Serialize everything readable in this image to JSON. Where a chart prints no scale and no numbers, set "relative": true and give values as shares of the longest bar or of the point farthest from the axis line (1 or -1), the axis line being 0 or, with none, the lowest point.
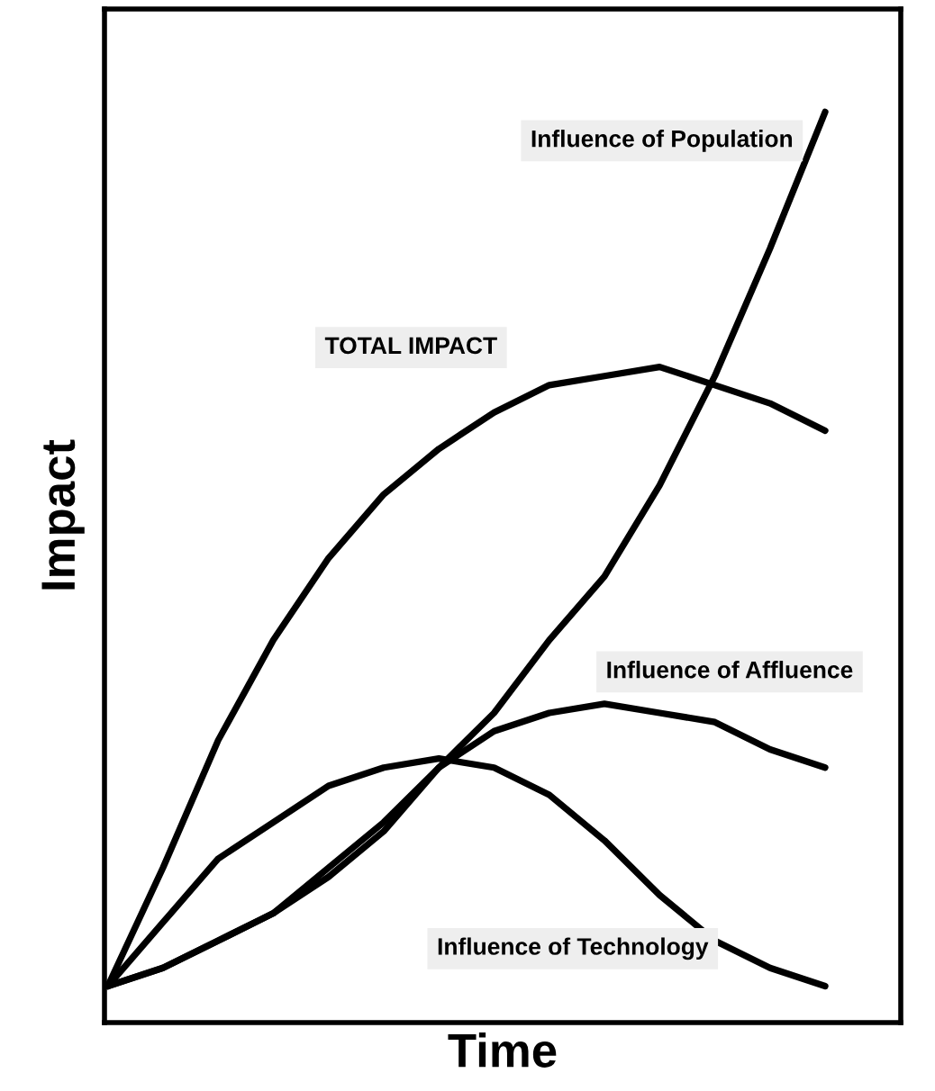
{
  "chart_data": {
    "type": "line",
    "relative": true,
    "xlabel": "Time",
    "ylabel": "Impact",
    "legend": false,
    "marker": "none",
    "line_style": "solid",
    "categories": [
      null,
      null,
      null,
      null,
      null,
      null,
      null,
      null,
      null,
      null,
      null,
      null,
      null,
      null
    ],
    "series": [
      {
        "name": "Influence of Population",
        "color": "#000000",
        "values": [
          0.04,
          0.06,
          0.09,
          0.12,
          0.16,
          0.21,
          0.28,
          0.34,
          0.42,
          0.49,
          0.59,
          0.71,
          0.85,
          1
        ]
      },
      {
        "name": "TOTAL IMPACT",
        "color": "#000000",
        "values": [
          0.04,
          0.17,
          0.31,
          0.42,
          0.51,
          0.58,
          0.63,
          0.67,
          0.7,
          0.71,
          0.72,
          0.7,
          0.68,
          0.65
        ]
      },
      {
        "name": "Influence of Affluence",
        "color": "#000000",
        "values": [
          0.04,
          0.06,
          0.09,
          0.12,
          0.17,
          0.22,
          0.28,
          0.32,
          0.34,
          0.35,
          0.34,
          0.33,
          0.3,
          0.28
        ]
      },
      {
        "name": "Influence of Technology",
        "color": "#000000",
        "values": [
          0.04,
          0.11,
          0.18,
          0.22,
          0.26,
          0.28,
          0.29,
          0.28,
          0.25,
          0.2,
          0.14,
          0.09,
          0.06,
          0.04
        ]
      }
    ]
  }
}
